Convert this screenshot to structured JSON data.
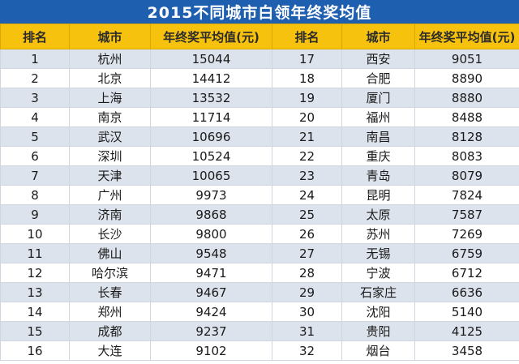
{
  "title": "2015不同城市白领年终奖均值",
  "chart_data": {
    "type": "table",
    "title": "2015不同城市白领年终奖均值",
    "columns": [
      "排名",
      "城市",
      "年终奖平均值(元)",
      "排名",
      "城市",
      "年终奖平均值(元)"
    ],
    "rows": [
      [
        "1",
        "杭州",
        "15044",
        "17",
        "西安",
        "9051"
      ],
      [
        "2",
        "北京",
        "14412",
        "18",
        "合肥",
        "8890"
      ],
      [
        "3",
        "上海",
        "13532",
        "19",
        "厦门",
        "8880"
      ],
      [
        "4",
        "南京",
        "11714",
        "20",
        "福州",
        "8488"
      ],
      [
        "5",
        "武汉",
        "10696",
        "21",
        "南昌",
        "8128"
      ],
      [
        "6",
        "深圳",
        "10524",
        "22",
        "重庆",
        "8083"
      ],
      [
        "7",
        "天津",
        "10065",
        "23",
        "青岛",
        "8079"
      ],
      [
        "8",
        "广州",
        "9973",
        "24",
        "昆明",
        "7824"
      ],
      [
        "9",
        "济南",
        "9868",
        "25",
        "太原",
        "7587"
      ],
      [
        "10",
        "长沙",
        "9800",
        "26",
        "苏州",
        "7269"
      ],
      [
        "11",
        "佛山",
        "9548",
        "27",
        "无锡",
        "6759"
      ],
      [
        "12",
        "哈尔滨",
        "9471",
        "28",
        "宁波",
        "6712"
      ],
      [
        "13",
        "长春",
        "9467",
        "29",
        "石家庄",
        "6636"
      ],
      [
        "14",
        "郑州",
        "9424",
        "30",
        "沈阳",
        "5140"
      ],
      [
        "15",
        "成都",
        "9237",
        "31",
        "贵阳",
        "4125"
      ],
      [
        "16",
        "大连",
        "9102",
        "32",
        "烟台",
        "3458"
      ]
    ]
  },
  "colors": {
    "title_bg": "#1f5fb0",
    "header_bg": "#f6c20e",
    "row_alt_bg": "#dde3ec"
  }
}
